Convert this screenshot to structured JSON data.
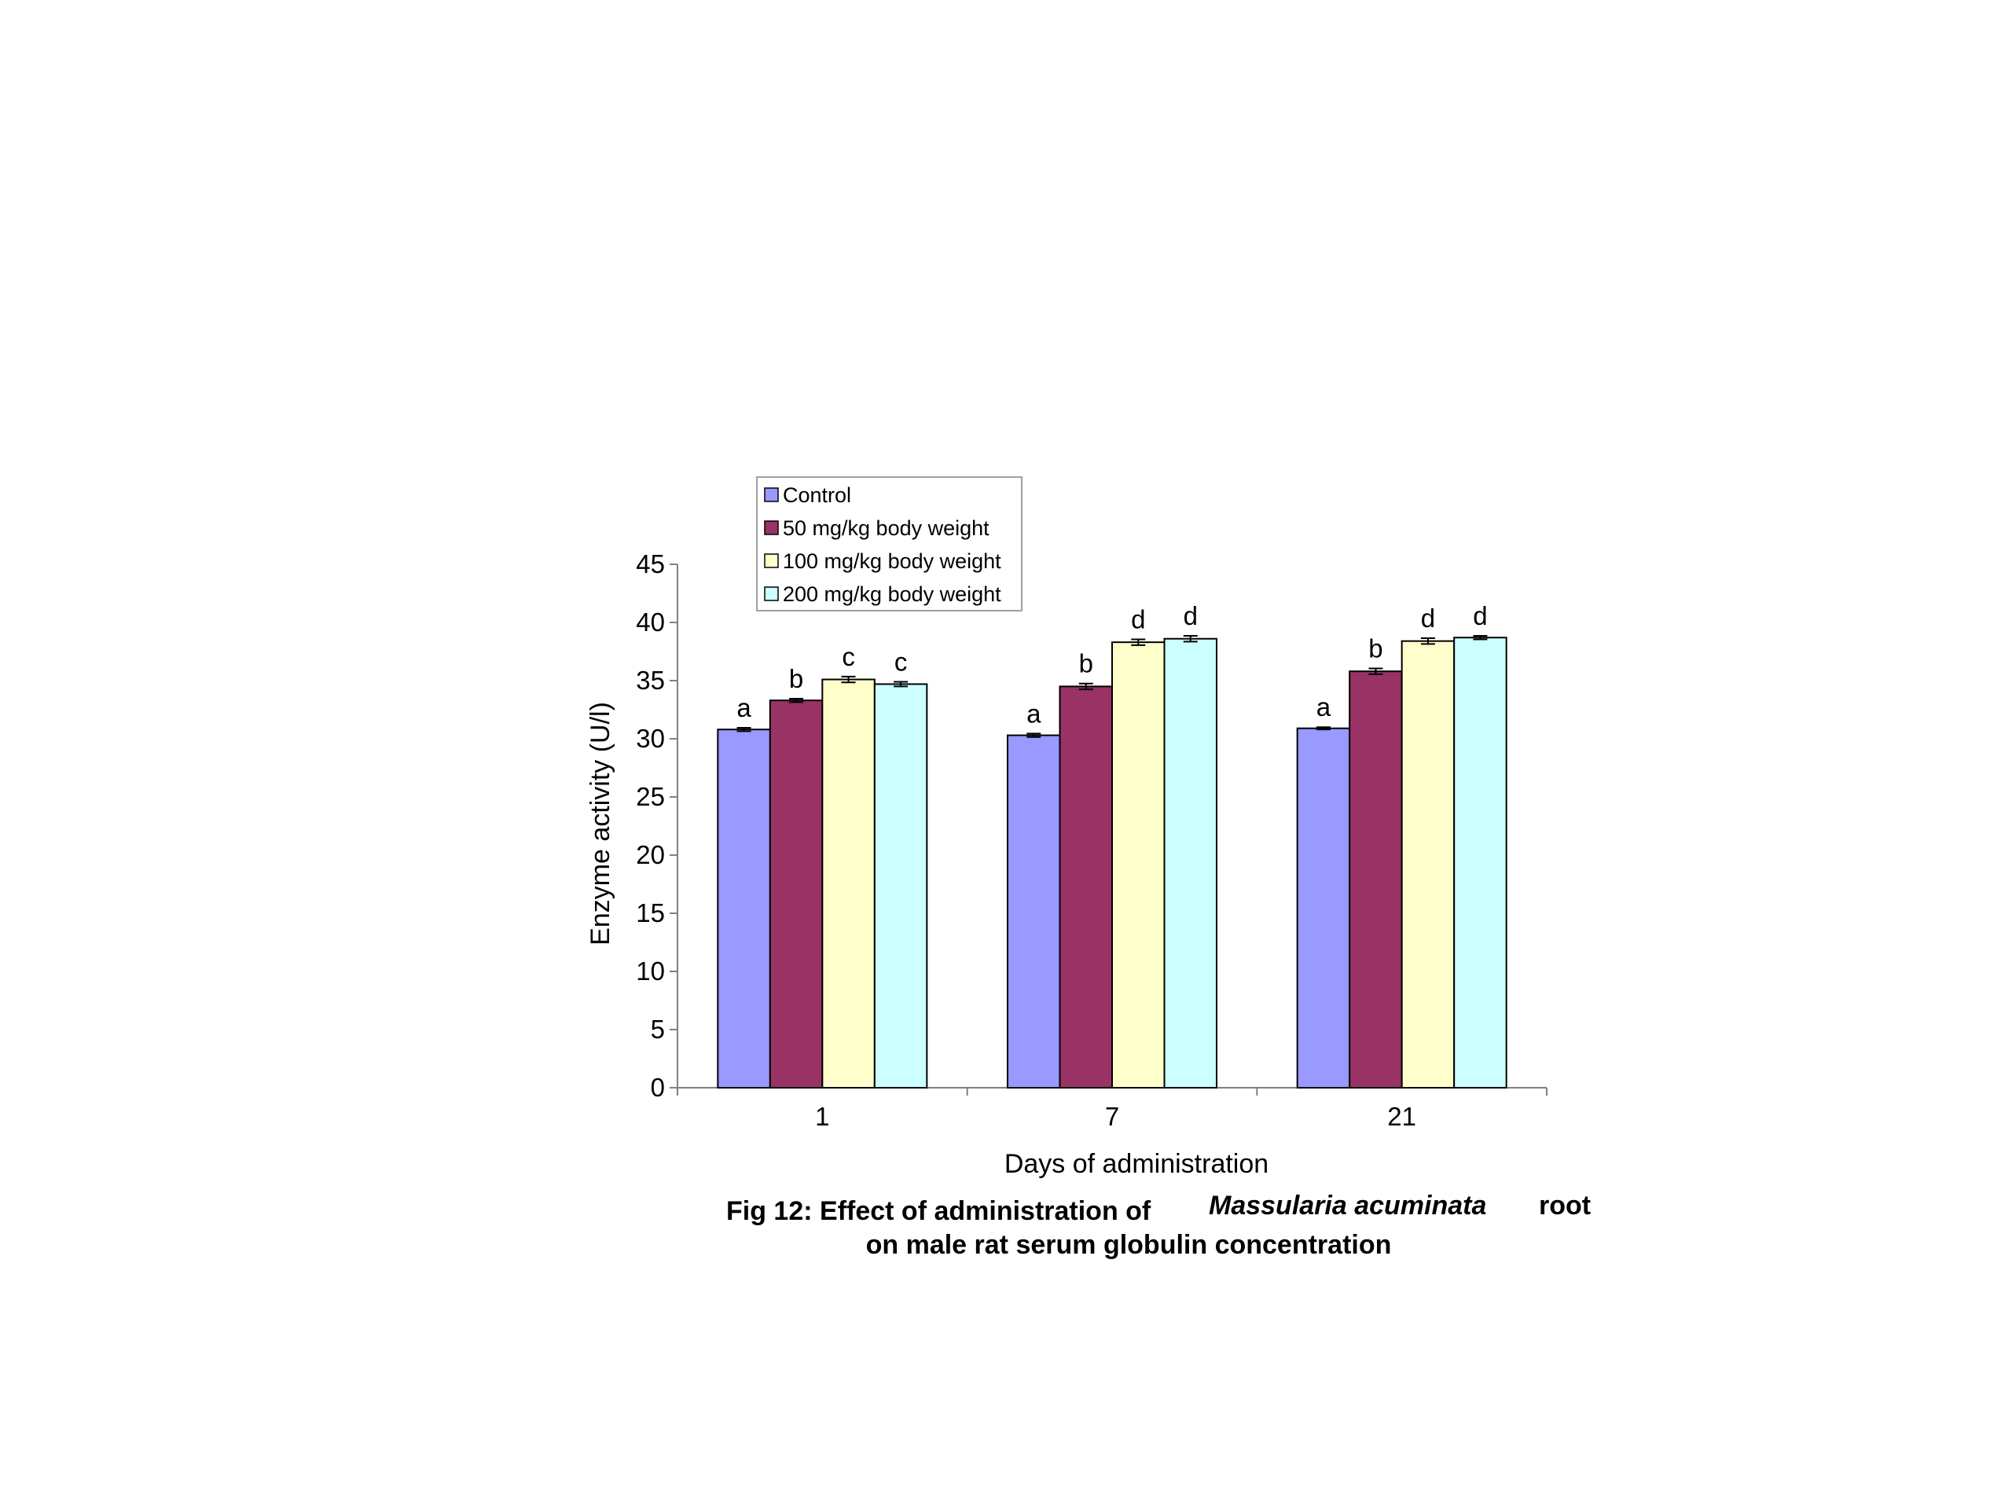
{
  "chart_data": {
    "type": "bar",
    "xlabel": "Days of administration",
    "ylabel": "Enzyme activity (U/l)",
    "ylim": [
      0,
      45
    ],
    "yticks": [
      0,
      5,
      10,
      15,
      20,
      25,
      30,
      35,
      40,
      45
    ],
    "categories": [
      "1",
      "7",
      "21"
    ],
    "series": [
      {
        "name": "Control",
        "color": "#9999ff",
        "values": [
          30.8,
          30.3,
          30.9
        ],
        "errors": [
          0.15,
          0.15,
          0.1
        ],
        "letters": [
          "a",
          "a",
          "a"
        ]
      },
      {
        "name": "50 mg/kg body weight",
        "color": "#993366",
        "values": [
          33.3,
          34.5,
          35.8
        ],
        "errors": [
          0.15,
          0.25,
          0.25
        ],
        "letters": [
          "b",
          "b",
          "b"
        ]
      },
      {
        "name": "100 mg/kg body weight",
        "color": "#ffffcc",
        "values": [
          35.1,
          38.3,
          38.4
        ],
        "errors": [
          0.25,
          0.25,
          0.25
        ],
        "letters": [
          "c",
          "d",
          "d"
        ]
      },
      {
        "name": "200 mg/kg body weight",
        "color": "#ccffff",
        "values": [
          34.7,
          38.6,
          38.7
        ],
        "errors": [
          0.2,
          0.25,
          0.15
        ],
        "letters": [
          "c",
          "d",
          "d"
        ]
      }
    ],
    "grid": false,
    "legend": "top-left"
  },
  "caption": {
    "line1_prefix": "Fig 12: Effect of administration of",
    "line1_species": "Massularia acuminata",
    "line1_suffix": "root",
    "line2": "on male rat serum globulin concentration"
  }
}
